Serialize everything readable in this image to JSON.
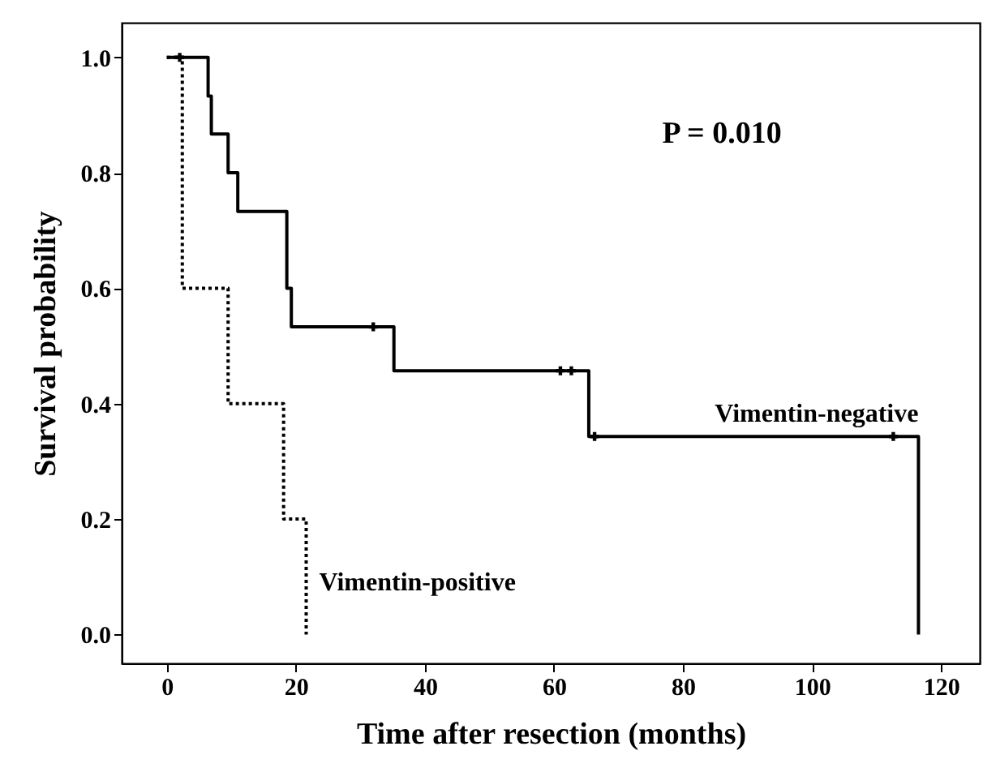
{
  "chart_data": {
    "type": "step",
    "xlabel": "Time after resection (months)",
    "ylabel": "Survival probability",
    "xlim": [
      -7,
      126
    ],
    "ylim": [
      -0.05,
      1.06
    ],
    "xticks": [
      0,
      20,
      40,
      60,
      80,
      100,
      120
    ],
    "yticks": [
      {
        "value": 0,
        "label": "0.0"
      },
      {
        "value": 0.2,
        "label": "0.2"
      },
      {
        "value": 0.4,
        "label": "0.4"
      },
      {
        "value": 0.6,
        "label": "0.6"
      },
      {
        "value": 0.8,
        "label": "0.8"
      },
      {
        "value": 1,
        "label": "1.0"
      }
    ],
    "grid": false,
    "annotations": [
      "P = 0.010"
    ],
    "series": [
      {
        "name": "Vimentin-negative",
        "color": "#000000",
        "line_style": "solid",
        "x": [
          0,
          6.4,
          6.9,
          9.5,
          11,
          18.6,
          19.3,
          35.2,
          65.4,
          116.5
        ],
        "values": [
          1,
          0.933,
          0.867,
          0.8,
          0.733,
          0.6,
          0.533,
          0.457,
          0.343,
          0
        ]
      },
      {
        "name": "Vimentin-positive",
        "color": "#000000",
        "line_style": "dotted",
        "x": [
          0,
          2.4,
          9.5,
          18.1,
          21.6
        ],
        "values": [
          1,
          0.6,
          0.4,
          0.2,
          0
        ]
      },
      {
        "type": "scatter",
        "marker": "cross",
        "color": "#000000",
        "x": [
          2,
          32,
          61,
          62.7,
          66.3,
          112.6
        ],
        "values": [
          1,
          0.533,
          0.457,
          0.457,
          0.343,
          0.343
        ]
      }
    ]
  }
}
